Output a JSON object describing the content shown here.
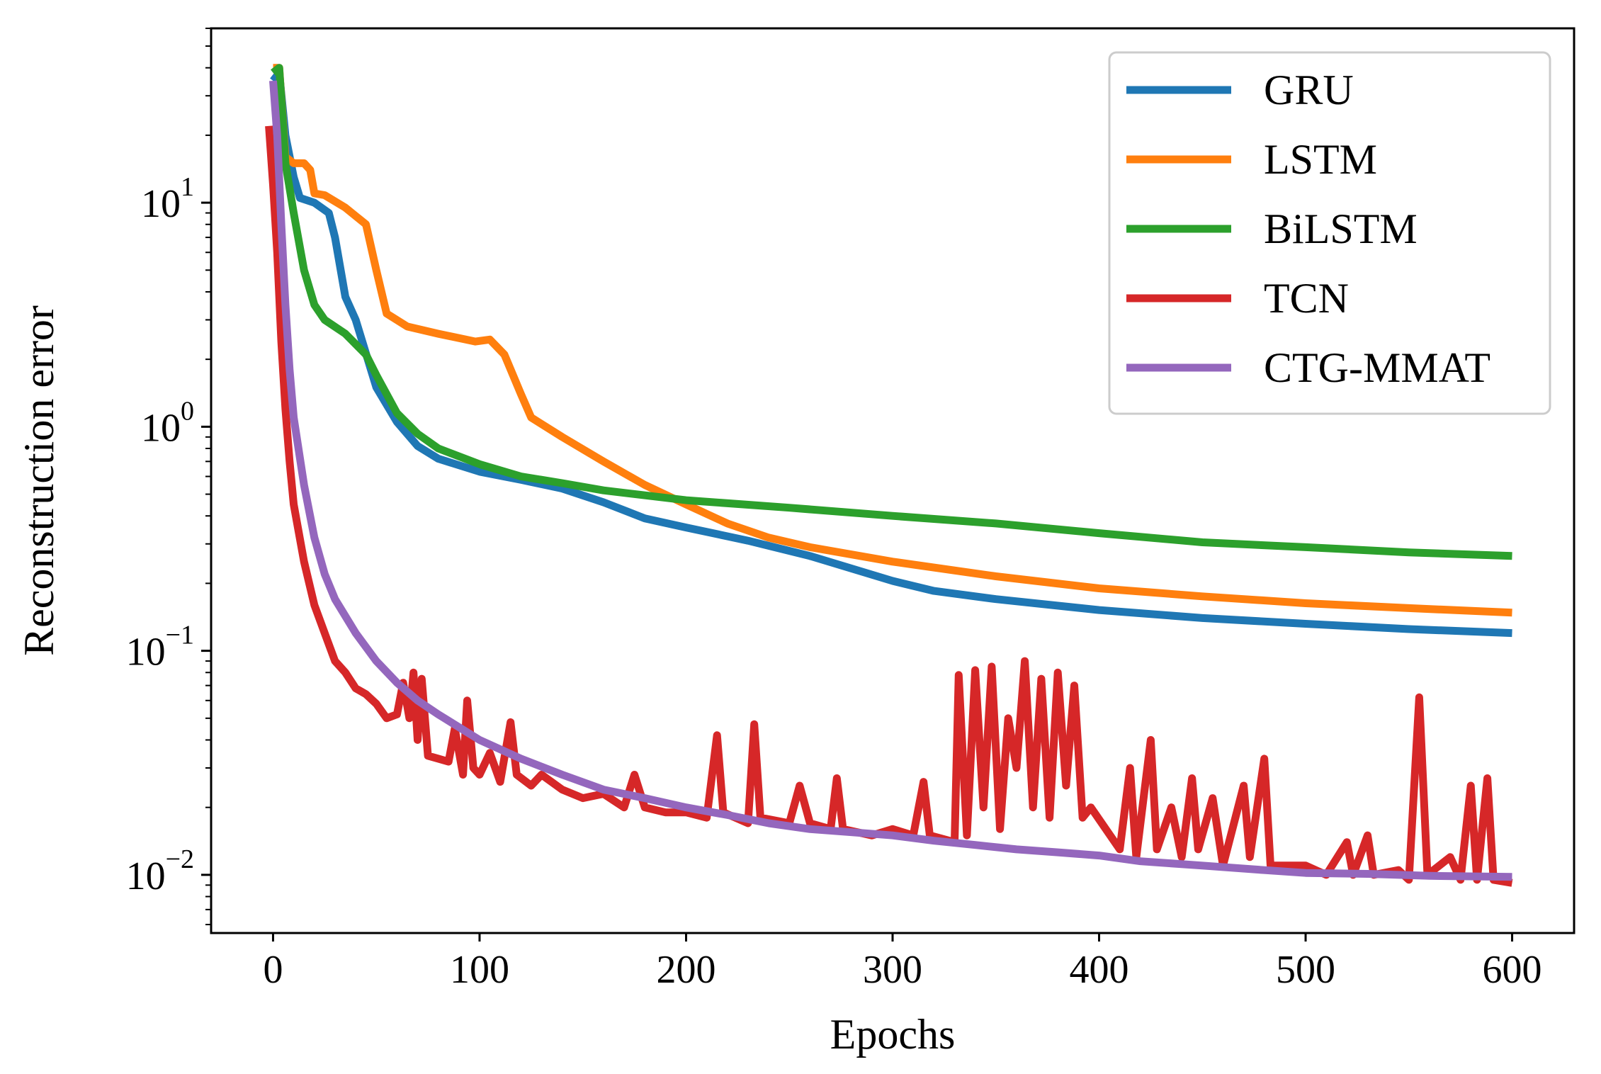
{
  "chart_data": {
    "type": "line",
    "title": "",
    "xlabel": "Epochs",
    "ylabel": "Reconstruction error",
    "xlim": [
      -30,
      630
    ],
    "ylim": [
      0.0055,
      60
    ],
    "yscale": "log",
    "x_ticks": [
      0,
      100,
      200,
      300,
      400,
      500,
      600
    ],
    "x_tick_labels": [
      "0",
      "100",
      "200",
      "300",
      "400",
      "500",
      "600"
    ],
    "y_ticks": [
      {
        "value": 10,
        "base": "10",
        "exponent": "1"
      },
      {
        "value": 1,
        "base": "10",
        "exponent": "0"
      },
      {
        "value": 0.1,
        "base": "10",
        "exponent": "−1"
      },
      {
        "value": 0.01,
        "base": "10",
        "exponent": "−2"
      }
    ],
    "grid": false,
    "legend_position": "top-right",
    "series": [
      {
        "name": "GRU",
        "color": "#1f77b4",
        "points": [
          [
            0,
            35
          ],
          [
            3,
            38
          ],
          [
            6,
            20
          ],
          [
            10,
            13
          ],
          [
            13,
            10.5
          ],
          [
            20,
            10
          ],
          [
            27,
            9
          ],
          [
            30,
            7
          ],
          [
            35,
            3.8
          ],
          [
            40,
            3
          ],
          [
            50,
            1.5
          ],
          [
            60,
            1.05
          ],
          [
            70,
            0.82
          ],
          [
            80,
            0.72
          ],
          [
            100,
            0.63
          ],
          [
            120,
            0.58
          ],
          [
            140,
            0.53
          ],
          [
            160,
            0.46
          ],
          [
            180,
            0.39
          ],
          [
            200,
            0.355
          ],
          [
            230,
            0.31
          ],
          [
            260,
            0.265
          ],
          [
            300,
            0.205
          ],
          [
            320,
            0.185
          ],
          [
            350,
            0.17
          ],
          [
            400,
            0.152
          ],
          [
            450,
            0.14
          ],
          [
            500,
            0.132
          ],
          [
            550,
            0.125
          ],
          [
            600,
            0.12
          ]
        ]
      },
      {
        "name": "LSTM",
        "color": "#ff7f0e",
        "points": [
          [
            0,
            40
          ],
          [
            3,
            40
          ],
          [
            6,
            16
          ],
          [
            10,
            15
          ],
          [
            15,
            15
          ],
          [
            18,
            14
          ],
          [
            20,
            11
          ],
          [
            25,
            10.8
          ],
          [
            35,
            9.5
          ],
          [
            45,
            8
          ],
          [
            50,
            5
          ],
          [
            55,
            3.2
          ],
          [
            65,
            2.8
          ],
          [
            80,
            2.6
          ],
          [
            98,
            2.4
          ],
          [
            105,
            2.45
          ],
          [
            112,
            2.1
          ],
          [
            120,
            1.4
          ],
          [
            125,
            1.1
          ],
          [
            140,
            0.9
          ],
          [
            160,
            0.7
          ],
          [
            180,
            0.55
          ],
          [
            200,
            0.45
          ],
          [
            220,
            0.37
          ],
          [
            240,
            0.32
          ],
          [
            260,
            0.29
          ],
          [
            300,
            0.25
          ],
          [
            350,
            0.215
          ],
          [
            400,
            0.19
          ],
          [
            450,
            0.175
          ],
          [
            500,
            0.163
          ],
          [
            550,
            0.155
          ],
          [
            600,
            0.148
          ]
        ]
      },
      {
        "name": "BiLSTM",
        "color": "#2ca02c",
        "points": [
          [
            0,
            38
          ],
          [
            3,
            40
          ],
          [
            6,
            15
          ],
          [
            10,
            9
          ],
          [
            15,
            5
          ],
          [
            20,
            3.5
          ],
          [
            25,
            3
          ],
          [
            35,
            2.6
          ],
          [
            45,
            2.1
          ],
          [
            50,
            1.7
          ],
          [
            60,
            1.15
          ],
          [
            70,
            0.93
          ],
          [
            80,
            0.8
          ],
          [
            100,
            0.68
          ],
          [
            120,
            0.6
          ],
          [
            140,
            0.56
          ],
          [
            160,
            0.52
          ],
          [
            200,
            0.47
          ],
          [
            250,
            0.435
          ],
          [
            300,
            0.4
          ],
          [
            350,
            0.37
          ],
          [
            400,
            0.335
          ],
          [
            450,
            0.305
          ],
          [
            500,
            0.29
          ],
          [
            550,
            0.275
          ],
          [
            600,
            0.265
          ]
        ]
      },
      {
        "name": "TCN",
        "color": "#d62728",
        "points": [
          [
            -2,
            22
          ],
          [
            0,
            12
          ],
          [
            2,
            6
          ],
          [
            4,
            2.4
          ],
          [
            6,
            1.2
          ],
          [
            8,
            0.7
          ],
          [
            10,
            0.45
          ],
          [
            15,
            0.25
          ],
          [
            20,
            0.16
          ],
          [
            25,
            0.12
          ],
          [
            30,
            0.09
          ],
          [
            35,
            0.08
          ],
          [
            40,
            0.068
          ],
          [
            45,
            0.064
          ],
          [
            50,
            0.058
          ],
          [
            55,
            0.05
          ],
          [
            60,
            0.052
          ],
          [
            63,
            0.072
          ],
          [
            66,
            0.05
          ],
          [
            68,
            0.08
          ],
          [
            70,
            0.04
          ],
          [
            72,
            0.075
          ],
          [
            75,
            0.034
          ],
          [
            80,
            0.033
          ],
          [
            85,
            0.032
          ],
          [
            88,
            0.045
          ],
          [
            92,
            0.028
          ],
          [
            94,
            0.06
          ],
          [
            97,
            0.03
          ],
          [
            100,
            0.028
          ],
          [
            105,
            0.035
          ],
          [
            110,
            0.026
          ],
          [
            115,
            0.048
          ],
          [
            118,
            0.028
          ],
          [
            125,
            0.025
          ],
          [
            130,
            0.028
          ],
          [
            140,
            0.024
          ],
          [
            150,
            0.022
          ],
          [
            160,
            0.023
          ],
          [
            170,
            0.02
          ],
          [
            175,
            0.028
          ],
          [
            180,
            0.02
          ],
          [
            190,
            0.019
          ],
          [
            200,
            0.019
          ],
          [
            210,
            0.018
          ],
          [
            215,
            0.042
          ],
          [
            218,
            0.019
          ],
          [
            230,
            0.017
          ],
          [
            233,
            0.047
          ],
          [
            236,
            0.018
          ],
          [
            250,
            0.017
          ],
          [
            255,
            0.025
          ],
          [
            260,
            0.017
          ],
          [
            270,
            0.016
          ],
          [
            273,
            0.027
          ],
          [
            276,
            0.016
          ],
          [
            290,
            0.015
          ],
          [
            300,
            0.016
          ],
          [
            310,
            0.015
          ],
          [
            315,
            0.026
          ],
          [
            318,
            0.015
          ],
          [
            330,
            0.014
          ],
          [
            332,
            0.078
          ],
          [
            336,
            0.015
          ],
          [
            340,
            0.082
          ],
          [
            344,
            0.02
          ],
          [
            348,
            0.085
          ],
          [
            352,
            0.016
          ],
          [
            356,
            0.05
          ],
          [
            360,
            0.03
          ],
          [
            364,
            0.09
          ],
          [
            368,
            0.02
          ],
          [
            372,
            0.075
          ],
          [
            376,
            0.018
          ],
          [
            380,
            0.08
          ],
          [
            384,
            0.025
          ],
          [
            388,
            0.07
          ],
          [
            392,
            0.018
          ],
          [
            396,
            0.02
          ],
          [
            410,
            0.013
          ],
          [
            415,
            0.03
          ],
          [
            418,
            0.012
          ],
          [
            425,
            0.04
          ],
          [
            428,
            0.013
          ],
          [
            435,
            0.02
          ],
          [
            440,
            0.012
          ],
          [
            445,
            0.027
          ],
          [
            448,
            0.013
          ],
          [
            455,
            0.022
          ],
          [
            460,
            0.011
          ],
          [
            470,
            0.025
          ],
          [
            473,
            0.012
          ],
          [
            480,
            0.033
          ],
          [
            483,
            0.011
          ],
          [
            490,
            0.011
          ],
          [
            500,
            0.011
          ],
          [
            510,
            0.01
          ],
          [
            520,
            0.014
          ],
          [
            523,
            0.01
          ],
          [
            530,
            0.015
          ],
          [
            533,
            0.01
          ],
          [
            545,
            0.0105
          ],
          [
            550,
            0.0095
          ],
          [
            555,
            0.062
          ],
          [
            559,
            0.01
          ],
          [
            570,
            0.012
          ],
          [
            575,
            0.0095
          ],
          [
            580,
            0.025
          ],
          [
            583,
            0.0095
          ],
          [
            588,
            0.027
          ],
          [
            591,
            0.0095
          ],
          [
            600,
            0.0092
          ]
        ]
      },
      {
        "name": "CTG-MMAT",
        "color": "#9467bd",
        "points": [
          [
            0,
            35
          ],
          [
            2,
            20
          ],
          [
            4,
            8
          ],
          [
            6,
            3.5
          ],
          [
            8,
            1.8
          ],
          [
            10,
            1.1
          ],
          [
            15,
            0.55
          ],
          [
            20,
            0.32
          ],
          [
            25,
            0.22
          ],
          [
            30,
            0.17
          ],
          [
            40,
            0.12
          ],
          [
            50,
            0.09
          ],
          [
            60,
            0.072
          ],
          [
            70,
            0.06
          ],
          [
            80,
            0.052
          ],
          [
            100,
            0.04
          ],
          [
            120,
            0.033
          ],
          [
            140,
            0.028
          ],
          [
            160,
            0.024
          ],
          [
            180,
            0.022
          ],
          [
            200,
            0.02
          ],
          [
            220,
            0.0185
          ],
          [
            240,
            0.017
          ],
          [
            260,
            0.016
          ],
          [
            280,
            0.0155
          ],
          [
            300,
            0.015
          ],
          [
            320,
            0.0142
          ],
          [
            340,
            0.0136
          ],
          [
            360,
            0.013
          ],
          [
            380,
            0.0126
          ],
          [
            400,
            0.0122
          ],
          [
            420,
            0.0115
          ],
          [
            450,
            0.011
          ],
          [
            480,
            0.0105
          ],
          [
            500,
            0.0102
          ],
          [
            530,
            0.0101
          ],
          [
            560,
            0.0099
          ],
          [
            600,
            0.0098
          ]
        ]
      }
    ]
  }
}
